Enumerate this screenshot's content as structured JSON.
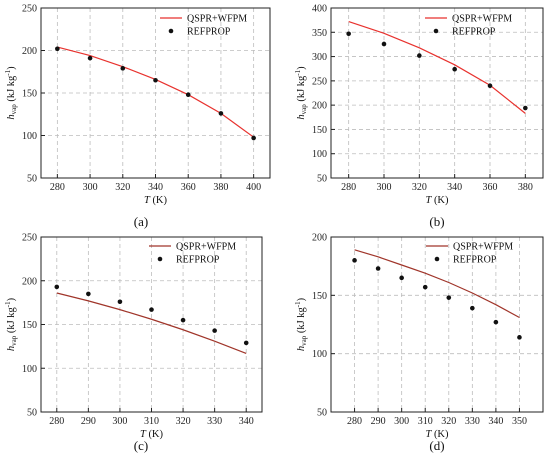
{
  "colors": {
    "ab_line": "#e8322e",
    "cd_line": "#a0352a",
    "points": "#111111",
    "grid": "#bdbdbd"
  },
  "chart_data": [
    {
      "id": "a",
      "type": "line",
      "panel_label": "(a)",
      "ylabel": "h_vap (kJ kg⁻¹)",
      "ylabel_main": "h",
      "ylabel_sub": "vap",
      "ylabel_unit": " (kJ kg",
      "ylabel_exp": "-1",
      "ylabel_end": ")",
      "xlabel_main": "T",
      "xlabel_unit": " (K)",
      "xlim": [
        270,
        410
      ],
      "ylim": [
        50,
        250
      ],
      "xticks": [
        280,
        300,
        320,
        340,
        360,
        380,
        400
      ],
      "yticks": [
        50,
        100,
        150,
        200,
        250
      ],
      "grid": true,
      "legend": "top-right",
      "series": [
        {
          "name": "QSPR+WFPM",
          "kind": "line",
          "x": [
            280,
            300,
            320,
            340,
            360,
            380,
            400
          ],
          "y": [
            204,
            194,
            181,
            166,
            148,
            126,
            98
          ]
        },
        {
          "name": "REFPROP",
          "kind": "scatter",
          "x": [
            280,
            300,
            320,
            340,
            360,
            380,
            400
          ],
          "y": [
            202,
            191,
            179,
            165,
            148,
            126,
            97
          ]
        }
      ]
    },
    {
      "id": "b",
      "type": "line",
      "panel_label": "(b)",
      "ylabel": "h_vap (kJ kg⁻¹)",
      "ylabel_main": "h",
      "ylabel_sub": "vap",
      "ylabel_unit": " (kJ kg",
      "ylabel_exp": "-1",
      "ylabel_end": ")",
      "xlabel_main": "T",
      "xlabel_unit": " (K)",
      "xlim": [
        270,
        390
      ],
      "ylim": [
        50,
        400
      ],
      "xticks": [
        280,
        300,
        320,
        340,
        360,
        380
      ],
      "yticks": [
        50,
        100,
        150,
        200,
        250,
        300,
        350,
        400
      ],
      "grid": true,
      "legend": "top-right",
      "series": [
        {
          "name": "QSPR+WFPM",
          "kind": "line",
          "x": [
            280,
            300,
            320,
            340,
            360,
            380
          ],
          "y": [
            372,
            348,
            318,
            283,
            241,
            183
          ]
        },
        {
          "name": "REFPROP",
          "kind": "scatter",
          "x": [
            280,
            300,
            320,
            340,
            360,
            380
          ],
          "y": [
            347,
            326,
            302,
            274,
            240,
            194
          ]
        }
      ]
    },
    {
      "id": "c",
      "type": "line",
      "panel_label": "(c)",
      "ylabel": "h_vap (kJ kg⁻¹)",
      "ylabel_main": "h",
      "ylabel_sub": "vap",
      "ylabel_unit": " (kJ kg",
      "ylabel_exp": "-1",
      "ylabel_end": ")",
      "xlabel_main": "T",
      "xlabel_unit": " (K)",
      "xlim": [
        275,
        345
      ],
      "ylim": [
        50,
        250
      ],
      "xticks": [
        280,
        290,
        300,
        310,
        320,
        330,
        340
      ],
      "yticks": [
        50,
        100,
        150,
        200,
        250
      ],
      "grid": true,
      "legend": "top-right",
      "series": [
        {
          "name": "QSPR+WFPM",
          "kind": "line",
          "x": [
            280,
            290,
            300,
            310,
            320,
            330,
            340
          ],
          "y": [
            186,
            177,
            167,
            156,
            144,
            131,
            117
          ]
        },
        {
          "name": "REFPROP",
          "kind": "scatter",
          "x": [
            280,
            290,
            300,
            310,
            320,
            330,
            340
          ],
          "y": [
            193,
            185,
            176,
            167,
            155,
            143,
            129
          ]
        }
      ]
    },
    {
      "id": "d",
      "type": "line",
      "panel_label": "(d)",
      "ylabel": "h_vap (kJ kg⁻¹)",
      "ylabel_main": "h",
      "ylabel_sub": "vap",
      "ylabel_unit": " (kJ kg",
      "ylabel_exp": "-1",
      "ylabel_end": ")",
      "xlabel_main": "T",
      "xlabel_unit": " (K)",
      "xlim": [
        270,
        360
      ],
      "ylim": [
        50,
        200
      ],
      "xticks": [
        280,
        290,
        300,
        310,
        320,
        330,
        340,
        350
      ],
      "yticks": [
        50,
        100,
        150,
        200
      ],
      "grid": true,
      "legend": "top-right",
      "series": [
        {
          "name": "QSPR+WFPM",
          "kind": "line",
          "x": [
            280,
            290,
            300,
            310,
            320,
            330,
            340,
            350
          ],
          "y": [
            189,
            183,
            176,
            169,
            161,
            152,
            142,
            131
          ]
        },
        {
          "name": "REFPROP",
          "kind": "scatter",
          "x": [
            280,
            290,
            300,
            310,
            320,
            330,
            340,
            350
          ],
          "y": [
            180,
            173,
            165,
            157,
            148,
            139,
            127,
            114
          ]
        }
      ]
    }
  ]
}
